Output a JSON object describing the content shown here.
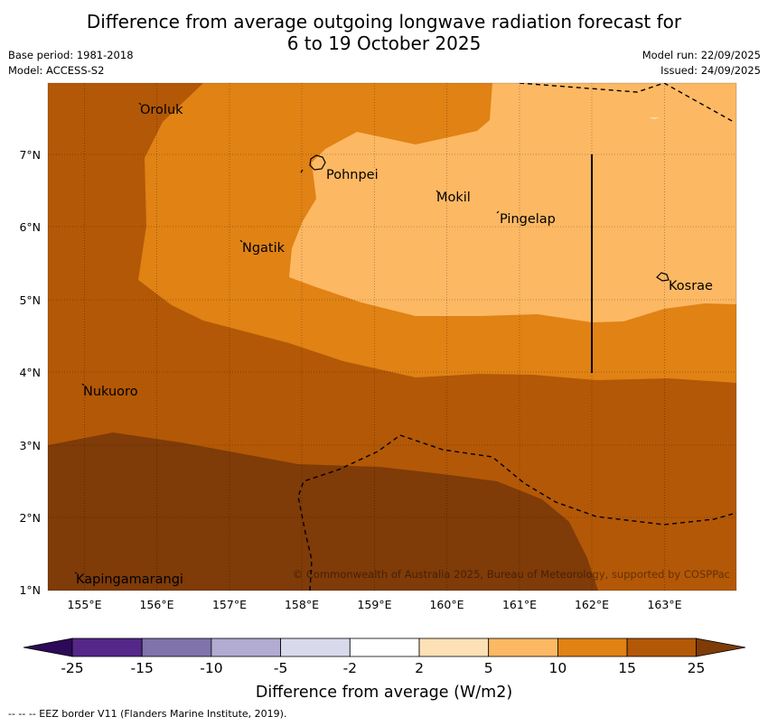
{
  "header": {
    "title_line1": "Difference from average outgoing longwave radiation forecast for",
    "title_line2": "6 to 19 October 2025",
    "base_period": "Base period: 1981-2018",
    "model": "Model: ACCESS-S2",
    "model_run": "Model run: 22/09/2025",
    "issued": "Issued: 24/09/2025"
  },
  "map": {
    "lon_ticks": [
      "155°E",
      "156°E",
      "157°E",
      "158°E",
      "159°E",
      "160°E",
      "161°E",
      "162°E",
      "163°E"
    ],
    "lat_ticks": [
      "7°N",
      "6°N",
      "5°N",
      "4°N",
      "3°N",
      "2°N",
      "1°N"
    ],
    "places": [
      "Oroluk",
      "Pohnpei",
      "Mokil",
      "Pingelap",
      "Ngatik",
      "Kosrae",
      "Nukuoro",
      "Kapingamarangi"
    ],
    "copyright": "© Commonwealth of Australia 2025, Bureau of Meteorology, supported by COSPPac"
  },
  "legend": {
    "labels": [
      "-25",
      "-15",
      "-10",
      "-5",
      "-2",
      "2",
      "5",
      "10",
      "15",
      "25"
    ],
    "colors": [
      "#2d0a57",
      "#542788",
      "#8073ac",
      "#b2abd2",
      "#d8daeb",
      "#ffffff",
      "#fee0b6",
      "#fdb863",
      "#e08214",
      "#b35806",
      "#7f3b08"
    ],
    "title": "Difference from average (W/m2)"
  },
  "footer": {
    "eez_note": "--  --  -- EEZ border V11 (Flanders Marine Institute, 2019)."
  }
}
